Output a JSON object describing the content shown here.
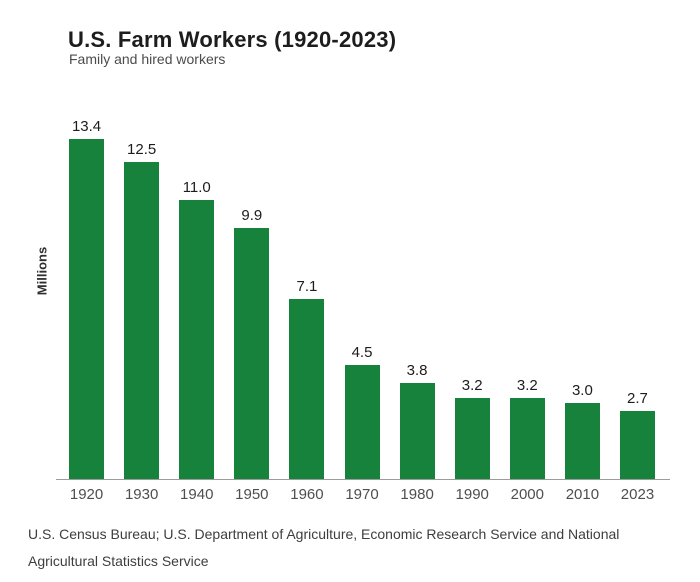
{
  "header": {
    "title": "U.S. Farm Workers (1920-2023)",
    "subtitle": "Family and hired workers"
  },
  "chart_data": {
    "type": "bar",
    "title": "U.S. Farm Workers (1920-2023)",
    "subtitle": "Family and hired workers",
    "categories": [
      "1920",
      "1930",
      "1940",
      "1950",
      "1960",
      "1970",
      "1980",
      "1990",
      "2000",
      "2010",
      "2023"
    ],
    "values": [
      13.4,
      12.5,
      11.0,
      9.9,
      7.1,
      4.5,
      3.8,
      3.2,
      3.2,
      3.0,
      2.7
    ],
    "value_labels": [
      "13.4",
      "12.5",
      "11.0",
      "9.9",
      "7.1",
      "4.5",
      "3.8",
      "3.2",
      "3.2",
      "3.0",
      "2.7"
    ],
    "xlabel": "",
    "ylabel": "Millions",
    "ylim": [
      0,
      14.4
    ],
    "grid": false,
    "legend": "none",
    "bar_color": "#16823C",
    "axis_line_color": "#9C9C9C"
  },
  "footer": {
    "source": "U.S. Census Bureau; U.S. Department of Agriculture, Economic Research Service and National Agricultural Statistics Service"
  }
}
